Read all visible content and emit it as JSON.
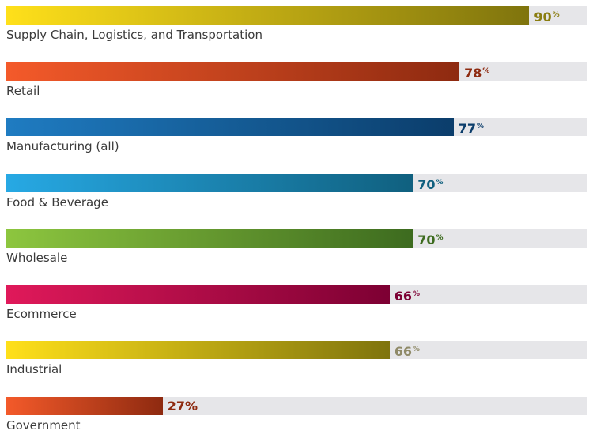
{
  "chart_data": {
    "type": "bar",
    "orientation": "horizontal",
    "categories": [
      "Supply Chain, Logistics, and Transportation",
      "Retail",
      "Manufacturing (all)",
      "Food & Beverage",
      "Wholesale",
      "Ecommerce",
      "Industrial",
      "Government"
    ],
    "values": [
      90,
      78,
      77,
      70,
      70,
      66,
      66,
      27
    ],
    "value_suffix": "%",
    "xlim": [
      0,
      100
    ],
    "bar_colors": [
      [
        "#ffe01a",
        "#7f740d"
      ],
      [
        "#f45a2a",
        "#8e2a10"
      ],
      [
        "#1f7cc2",
        "#0b3d6b"
      ],
      [
        "#27a9e4",
        "#10607f"
      ],
      [
        "#8dc63f",
        "#3d6b1f"
      ],
      [
        "#e0195a",
        "#7d0033"
      ],
      [
        "#ffe01a",
        "#7f740d"
      ],
      [
        "#f45a2a",
        "#8e2a10"
      ]
    ],
    "label_colors": [
      "#8a7d10",
      "#8e2a10",
      "#0b3d6b",
      "#10607f",
      "#3d6b1f",
      "#7d0033",
      "#8f8a68",
      "#8e2a10"
    ],
    "track_color": "#e6e6e9",
    "grid": false,
    "legend": "none"
  }
}
